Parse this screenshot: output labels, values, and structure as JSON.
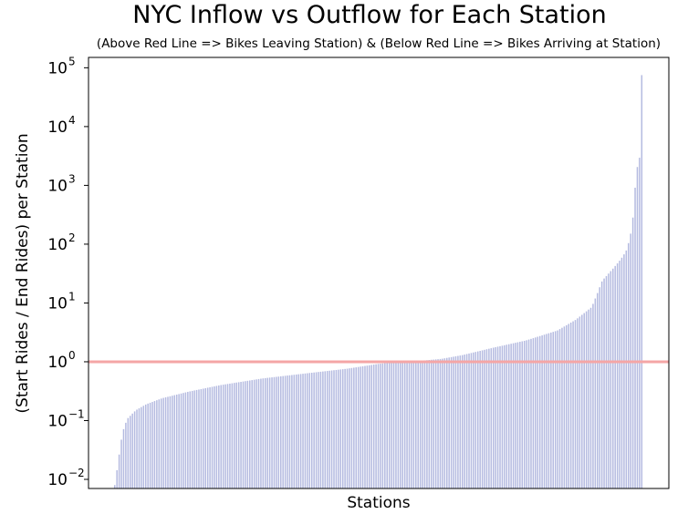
{
  "chart_data": {
    "type": "bar",
    "title": "NYC Inflow vs Outflow for Each Station",
    "subtitle": "(Above Red Line => Bikes Leaving Station) & (Below Red Line => Bikes Arriving at Station)",
    "xlabel": "Stations",
    "ylabel": "(Start Rides / End Rides) per Station",
    "yscale": "log",
    "ylim": [
      0.007,
      150000
    ],
    "yticks": [
      {
        "base": "10",
        "exp": "−2"
      },
      {
        "base": "10",
        "exp": "−1"
      },
      {
        "base": "10",
        "exp": "0"
      },
      {
        "base": "10",
        "exp": "1"
      },
      {
        "base": "10",
        "exp": "2"
      },
      {
        "base": "10",
        "exp": "3"
      },
      {
        "base": "10",
        "exp": "4"
      },
      {
        "base": "10",
        "exp": "5"
      }
    ],
    "ytick_values": [
      0.01,
      0.1,
      1,
      10,
      100,
      1000,
      10000,
      100000
    ],
    "reference_line": {
      "y": 1,
      "color": "#f4a6a6"
    },
    "bar_color": "#b4bae0",
    "grid": false,
    "station_count": 239,
    "ratio_profile": [
      [
        0.0,
        0.008
      ],
      [
        0.003,
        0.012
      ],
      [
        0.008,
        0.025
      ],
      [
        0.013,
        0.05
      ],
      [
        0.018,
        0.08
      ],
      [
        0.025,
        0.11
      ],
      [
        0.04,
        0.15
      ],
      [
        0.06,
        0.19
      ],
      [
        0.09,
        0.24
      ],
      [
        0.14,
        0.31
      ],
      [
        0.2,
        0.4
      ],
      [
        0.28,
        0.52
      ],
      [
        0.36,
        0.63
      ],
      [
        0.44,
        0.76
      ],
      [
        0.5,
        0.92
      ],
      [
        0.54,
        1.0
      ],
      [
        0.58,
        1.04
      ],
      [
        0.62,
        1.12
      ],
      [
        0.66,
        1.3
      ],
      [
        0.72,
        1.75
      ],
      [
        0.78,
        2.3
      ],
      [
        0.84,
        3.4
      ],
      [
        0.875,
        5.2
      ],
      [
        0.905,
        8.5
      ],
      [
        0.915,
        14
      ],
      [
        0.925,
        24
      ],
      [
        0.945,
        38
      ],
      [
        0.96,
        55
      ],
      [
        0.97,
        75
      ],
      [
        0.978,
        130
      ],
      [
        0.984,
        320
      ],
      [
        0.988,
        1100
      ],
      [
        0.992,
        2200
      ],
      [
        0.996,
        3000
      ],
      [
        1.0,
        75000
      ]
    ]
  }
}
